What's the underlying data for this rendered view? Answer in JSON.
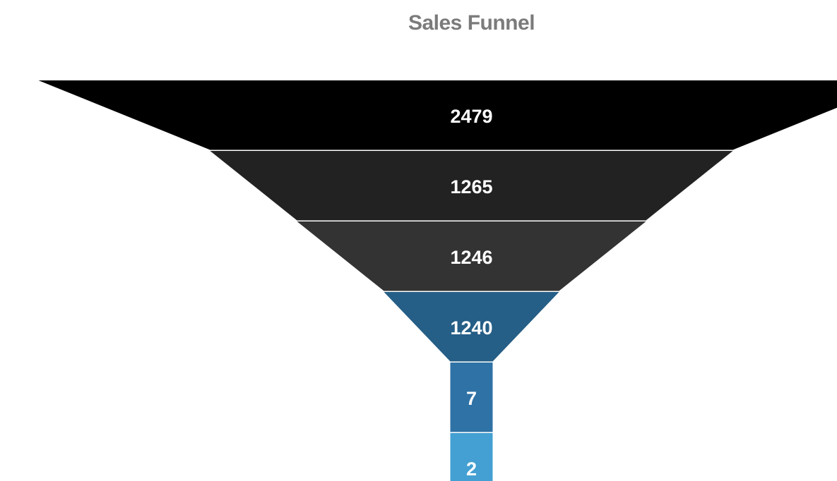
{
  "chart_data": {
    "type": "funnel",
    "title": "Sales Funnel",
    "values": [
      2479,
      1265,
      1246,
      1240,
      7,
      2
    ],
    "colors": [
      "#000000",
      "#222222",
      "#333333",
      "#255e86",
      "#2f72a6",
      "#44a0d2"
    ]
  }
}
